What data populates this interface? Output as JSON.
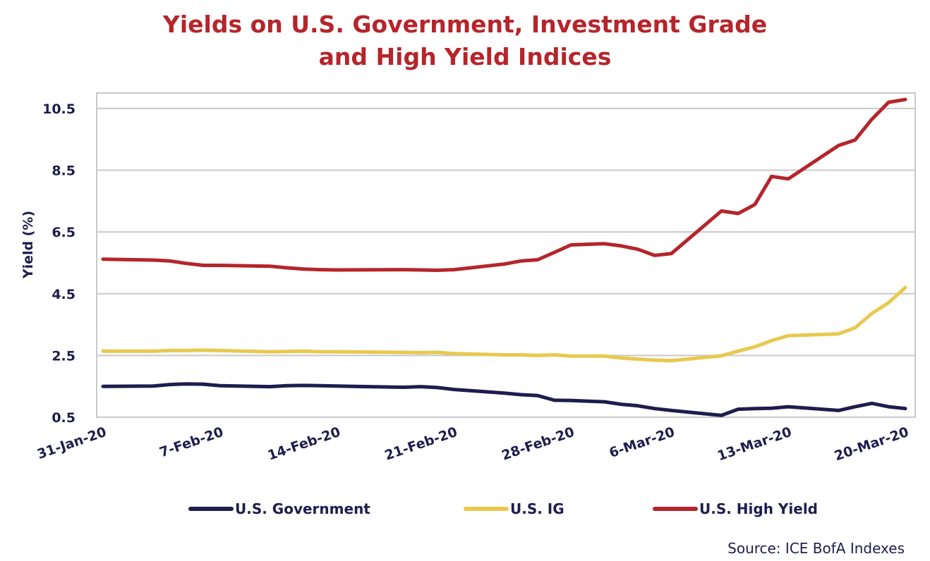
{
  "source": "Source: ICE BofA Indexes",
  "chart_data": {
    "type": "line",
    "title": [
      "Yields on U.S. Government, Investment Grade",
      "and High Yield Indices"
    ],
    "xlabel": "",
    "ylabel": "Yield (%)",
    "ylim": [
      0.5,
      11.0
    ],
    "yticks": [
      "0.5",
      "2.5",
      "4.5",
      "6.5",
      "8.5",
      "10.5"
    ],
    "xticks": [
      "31-Jan-20",
      "7-Feb-20",
      "14-Feb-20",
      "21-Feb-20",
      "28-Feb-20",
      "6-Mar-20",
      "13-Mar-20",
      "20-Mar-20"
    ],
    "grid": true,
    "legend_position": "bottom",
    "x": [
      "31-Jan-20",
      "3-Feb-20",
      "4-Feb-20",
      "5-Feb-20",
      "6-Feb-20",
      "7-Feb-20",
      "10-Feb-20",
      "11-Feb-20",
      "12-Feb-20",
      "13-Feb-20",
      "14-Feb-20",
      "18-Feb-20",
      "19-Feb-20",
      "20-Feb-20",
      "21-Feb-20",
      "24-Feb-20",
      "25-Feb-20",
      "26-Feb-20",
      "27-Feb-20",
      "28-Feb-20",
      "2-Mar-20",
      "3-Mar-20",
      "4-Mar-20",
      "5-Mar-20",
      "6-Mar-20",
      "9-Mar-20",
      "10-Mar-20",
      "11-Mar-20",
      "12-Mar-20",
      "13-Mar-20",
      "16-Mar-20",
      "17-Mar-20",
      "18-Mar-20",
      "19-Mar-20",
      "20-Mar-20"
    ],
    "x_positions": [
      0,
      3,
      4,
      5,
      6,
      7,
      10,
      11,
      12,
      13,
      14,
      18,
      19,
      20,
      21,
      24,
      25,
      26,
      27,
      28,
      30,
      31,
      32,
      33,
      34,
      37,
      38,
      39,
      40,
      41,
      44,
      45,
      46,
      47,
      48
    ],
    "series": [
      {
        "name": "U.S. Government",
        "color": "#1e1d4d",
        "values": [
          1.5,
          1.51,
          1.56,
          1.58,
          1.57,
          1.52,
          1.49,
          1.52,
          1.53,
          1.52,
          1.51,
          1.47,
          1.49,
          1.46,
          1.4,
          1.28,
          1.23,
          1.2,
          1.05,
          1.04,
          1.0,
          0.92,
          0.87,
          0.78,
          0.72,
          0.56,
          0.76,
          0.78,
          0.79,
          0.84,
          0.72,
          0.84,
          0.95,
          0.84,
          0.78
        ]
      },
      {
        "name": "U.S. IG",
        "color": "#e8c94f",
        "values": [
          2.64,
          2.64,
          2.66,
          2.66,
          2.67,
          2.66,
          2.62,
          2.63,
          2.64,
          2.62,
          2.62,
          2.6,
          2.59,
          2.6,
          2.56,
          2.52,
          2.52,
          2.5,
          2.52,
          2.48,
          2.48,
          2.42,
          2.38,
          2.35,
          2.33,
          2.49,
          2.64,
          2.78,
          2.98,
          3.14,
          3.2,
          3.4,
          3.86,
          4.21,
          4.7
        ]
      },
      {
        "name": "U.S. High Yield",
        "color": "#b5252b",
        "values": [
          5.62,
          5.59,
          5.56,
          5.48,
          5.42,
          5.42,
          5.39,
          5.34,
          5.3,
          5.28,
          5.27,
          5.28,
          5.27,
          5.26,
          5.28,
          5.46,
          5.56,
          5.6,
          5.84,
          6.08,
          6.12,
          6.05,
          5.94,
          5.74,
          5.8,
          7.18,
          7.1,
          7.39,
          8.3,
          8.22,
          9.3,
          9.48,
          10.15,
          10.7,
          10.79
        ]
      }
    ]
  }
}
